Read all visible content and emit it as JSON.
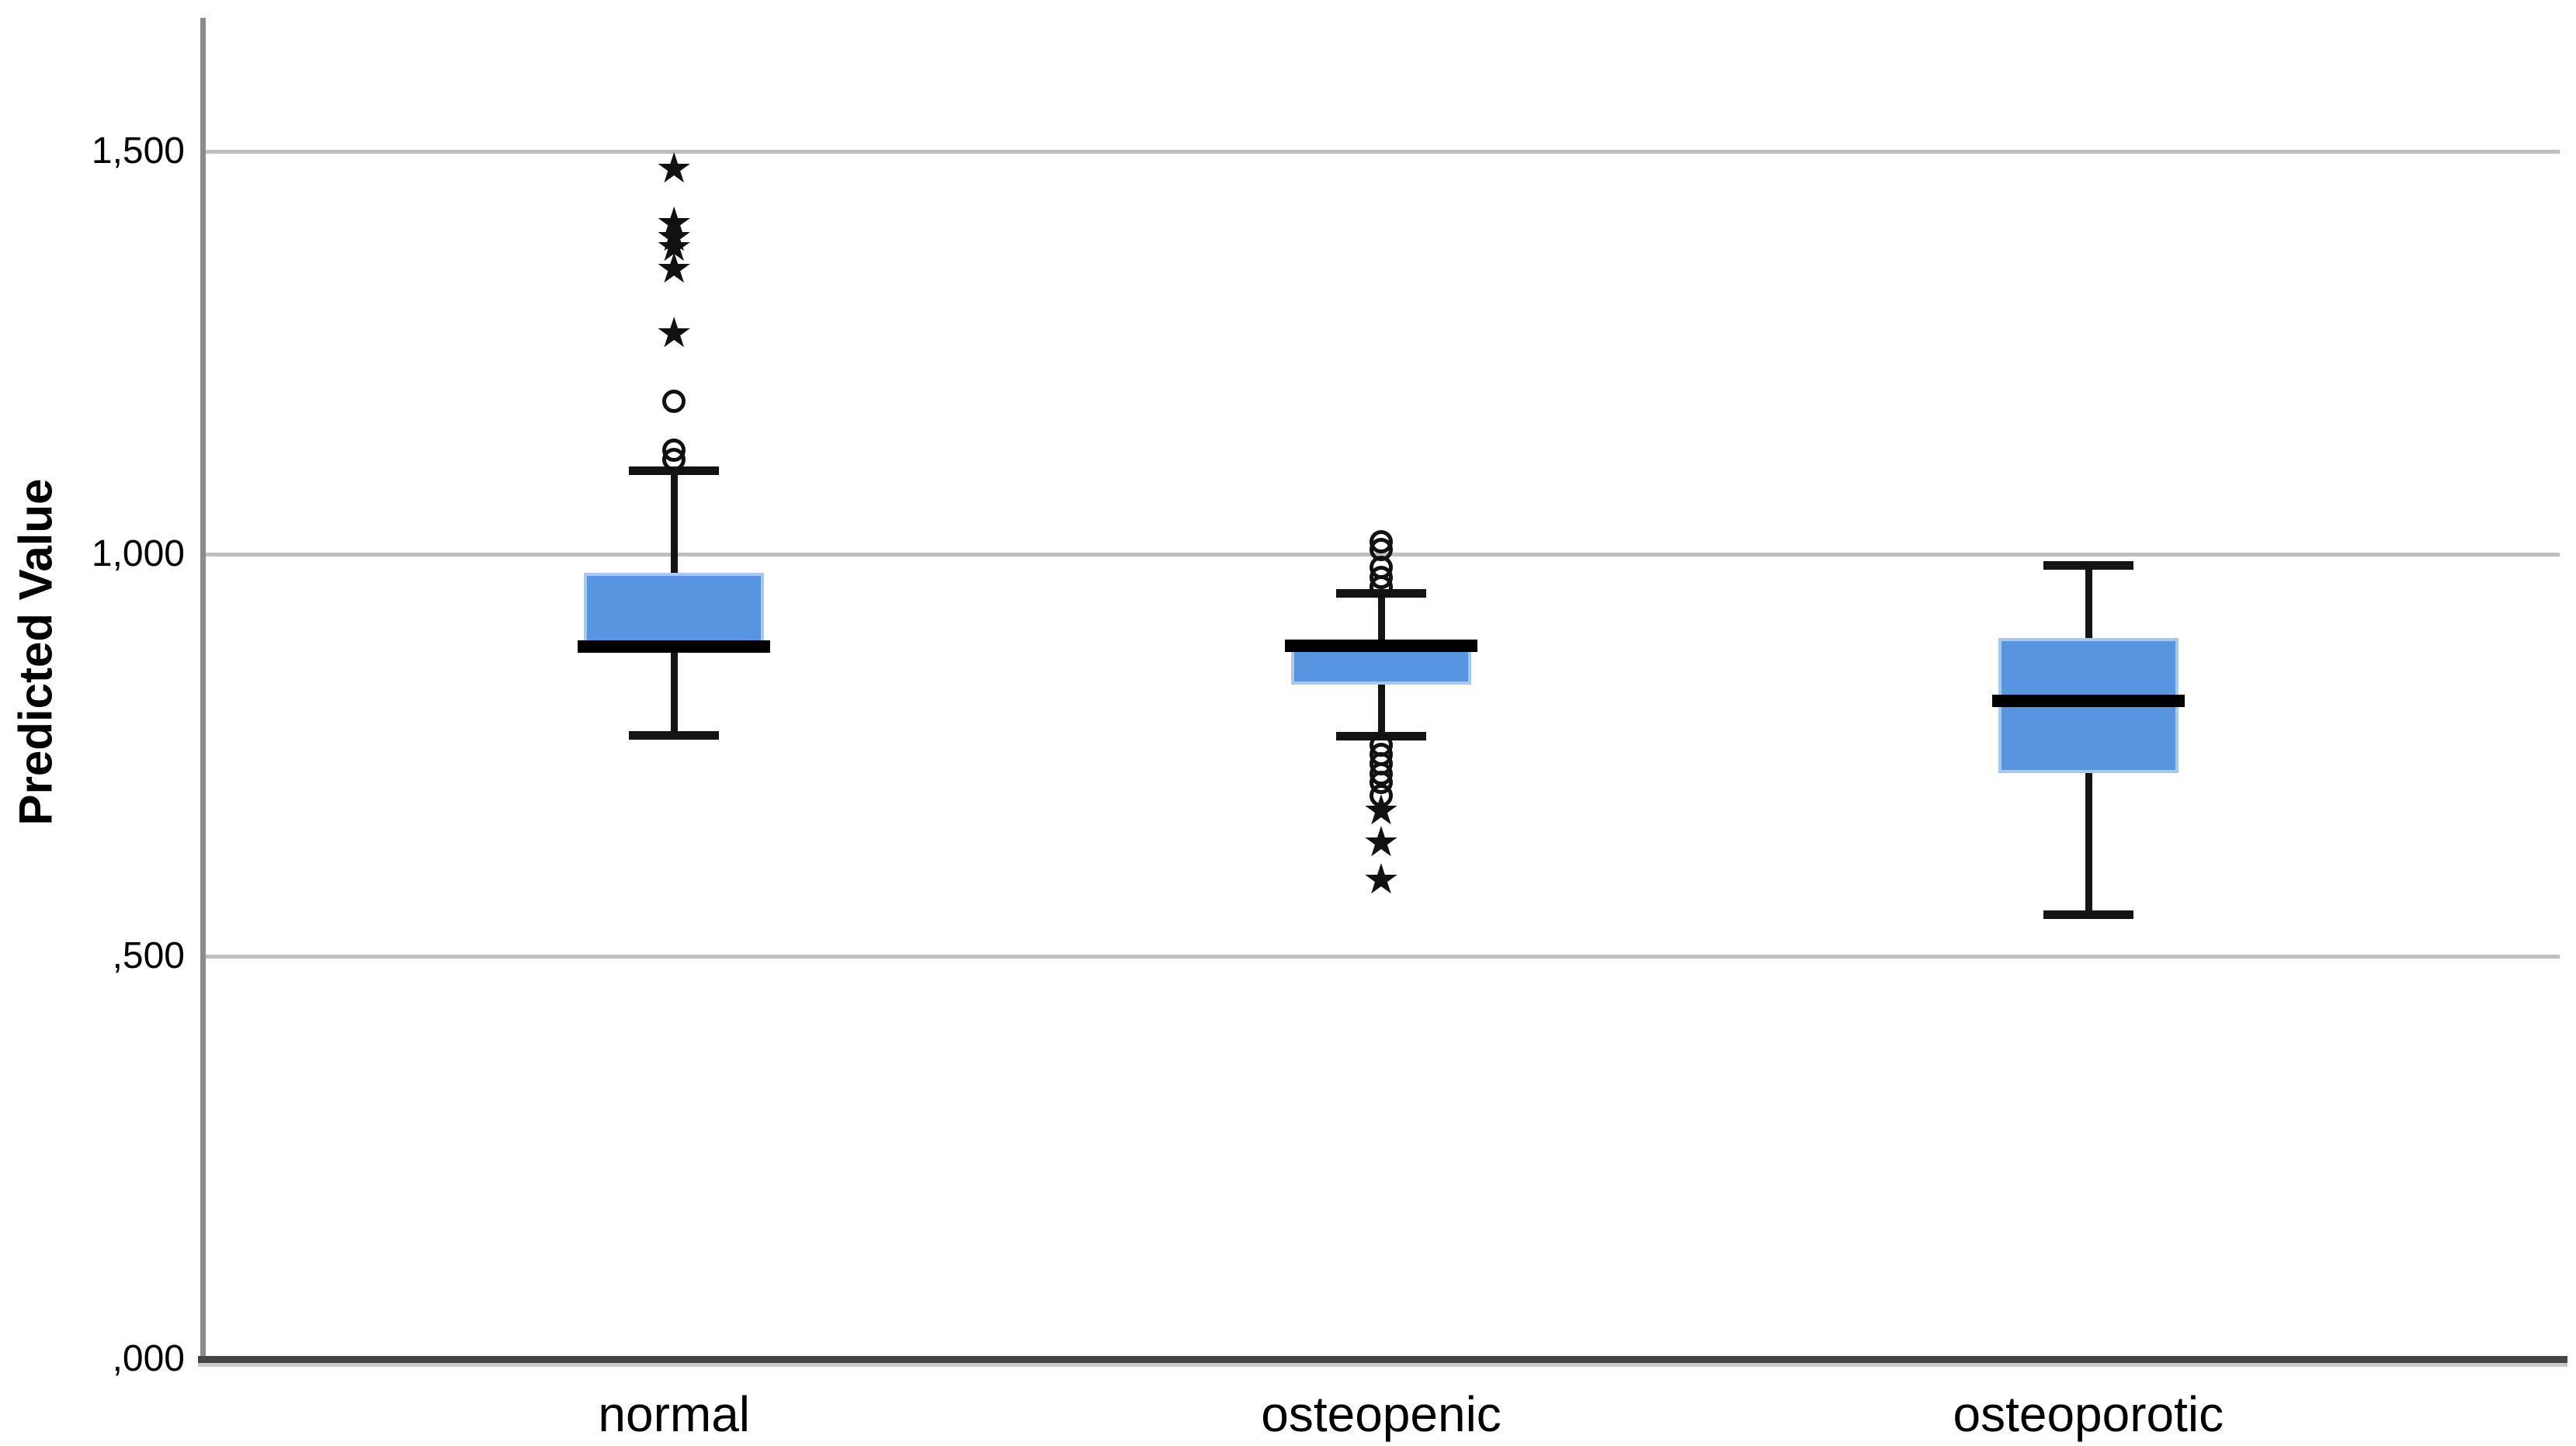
{
  "chart_data": {
    "type": "boxplot",
    "title": "",
    "xlabel": "",
    "ylabel": "Predicted Value",
    "categories": [
      "normal",
      "osteopenic",
      "osteoporotic"
    ],
    "y_ticks": [
      {
        "label": ",000",
        "value": 0.0
      },
      {
        "label": ",500",
        "value": 0.5
      },
      {
        "label": "1,000",
        "value": 1.0
      },
      {
        "label": "1,500",
        "value": 1.5
      }
    ],
    "ylim": [
      0,
      1.675
    ],
    "grid": true,
    "legend": "none",
    "markers": {
      "extreme_outlier": "★",
      "mild_outlier": "○"
    },
    "series": [
      {
        "category": "normal",
        "whisker_low": 0.775,
        "q1": 0.878,
        "median": 0.885,
        "q3": 0.977,
        "whisker_high": 1.104,
        "outliers_circle": [
          1.117,
          1.129,
          1.19
        ],
        "outliers_star": [
          1.274,
          1.354,
          1.381,
          1.394,
          1.411,
          1.479
        ]
      },
      {
        "category": "osteopenic",
        "whisker_low": 0.774,
        "q1": 0.838,
        "median": 0.886,
        "q3": 0.891,
        "whisker_high": 0.951,
        "outliers_circle": [
          1.015,
          1.005,
          0.983,
          0.971,
          0.959,
          0.763,
          0.751,
          0.739,
          0.727,
          0.716,
          0.7
        ],
        "outliers_star": [
          0.682,
          0.642,
          0.596
        ]
      },
      {
        "category": "osteoporotic",
        "whisker_low": 0.552,
        "q1": 0.728,
        "median": 0.817,
        "q3": 0.896,
        "whisker_high": 0.986,
        "outliers_circle": [],
        "outliers_star": []
      }
    ],
    "colors": {
      "box_fill": "#5795E0",
      "box_edge": "#A7C9EF",
      "median": "#000000",
      "whisker": "#141414",
      "outlier": "#111111",
      "y_axis": "#8B8B8B",
      "x_axis": "#454545",
      "x_axis_shadow": "#C8C8C8",
      "gridline": "#BEBEBE",
      "text": "#000000",
      "background": "#FFFFFF"
    }
  }
}
